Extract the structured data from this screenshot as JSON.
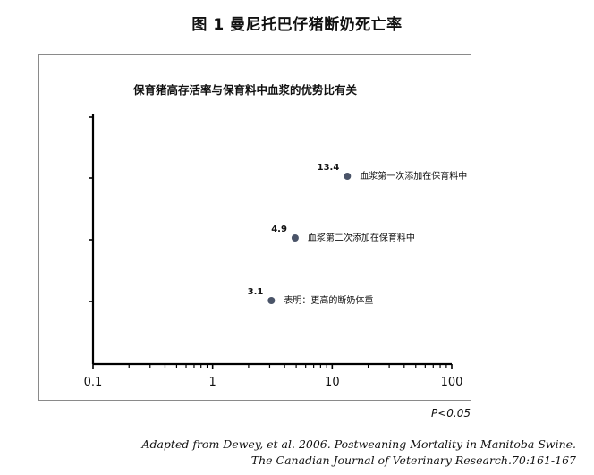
{
  "figure": {
    "title": "图 1 曼尼托巴仔猪断奶死亡率",
    "significance": "P<0.05",
    "citation_line1": "Adapted from Dewey, et al. 2006. Postweaning Mortality in Manitoba Swine.",
    "citation_line2": "The Canadian Journal of Veterinary Research.70:161-167"
  },
  "chart_data": {
    "type": "scatter",
    "title": "保育猪高存活率与保育料中血浆的优势比有关",
    "xlabel": "",
    "ylabel": "",
    "x_scale": "log",
    "xlim": [
      0.1,
      100
    ],
    "x_ticks": [
      "0.1",
      "1",
      "10",
      "100"
    ],
    "grid": false,
    "marker_color": "#4a5468",
    "points": [
      {
        "x": 13.4,
        "value_label": "13.4",
        "label": "血浆第一次添加在保育料中"
      },
      {
        "x": 4.9,
        "value_label": "4.9",
        "label": "血浆第二次添加在保育料中"
      },
      {
        "x": 3.1,
        "value_label": "3.1",
        "label": "表明：更高的断奶体重"
      }
    ]
  }
}
